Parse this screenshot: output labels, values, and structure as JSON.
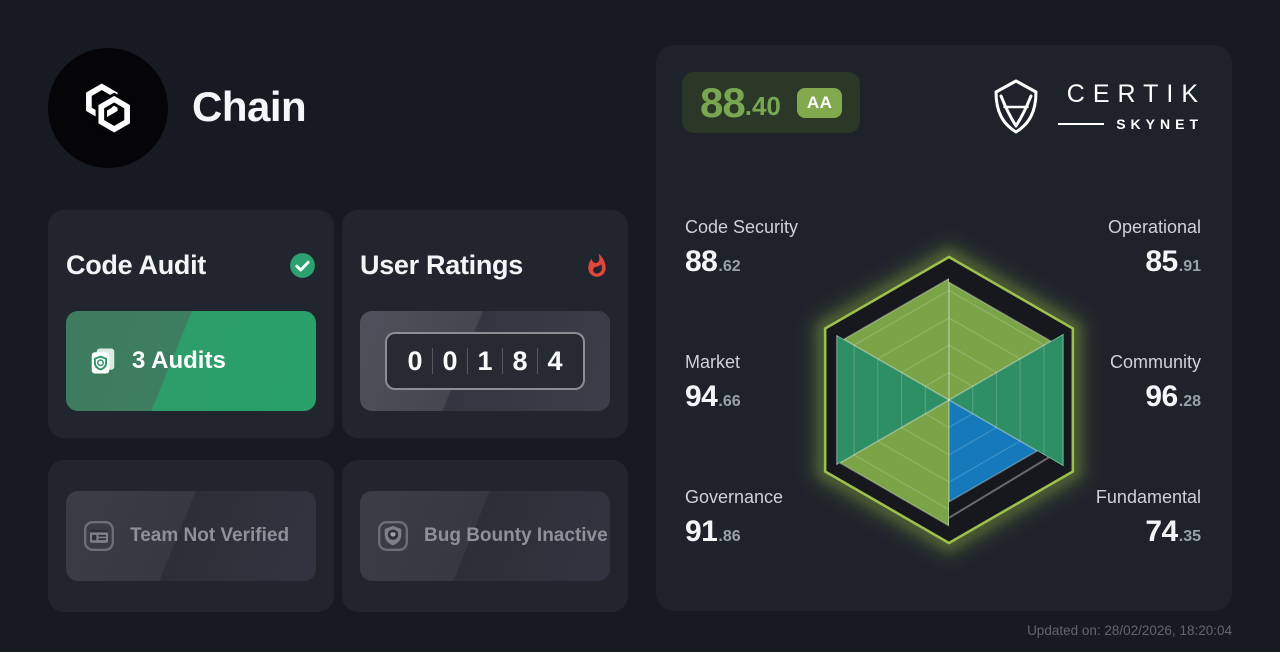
{
  "header": {
    "project_name": "Chain"
  },
  "cards": {
    "code_audit": {
      "title": "Code Audit",
      "status_icon": "check-circle",
      "button_label": "3 Audits"
    },
    "user_ratings": {
      "title": "User Ratings",
      "status_icon": "flame",
      "digits": [
        "0",
        "0",
        "1",
        "8",
        "4"
      ]
    },
    "team": {
      "icon": "id-card",
      "label": "Team Not Verified"
    },
    "bug_bounty": {
      "icon": "shield-bug",
      "label": "Bug Bounty Inactive"
    }
  },
  "skynet": {
    "score": {
      "int": "88",
      "dec": ".40",
      "grade": "AA"
    },
    "brand": {
      "name": "CERTIK",
      "sub": "SKYNET"
    },
    "colors": {
      "score_green": "#79a751",
      "grade_bg": "#83a94e",
      "hex_border": "#9cc04d",
      "hex_inner_fill": "#16181d",
      "olive": "#7ba347",
      "teal": "#2e8e64",
      "blue": "#1579bb"
    }
  },
  "chart_data": {
    "type": "radar",
    "shape": "hexagon",
    "max": 100,
    "sector_order": "clockwise-from-top-vertex",
    "metrics": [
      {
        "key": "operational",
        "label": "Operational",
        "value": 85.91,
        "color": "#7ba347",
        "pos": "tr"
      },
      {
        "key": "community",
        "label": "Community",
        "value": 96.28,
        "color": "#2e8e64",
        "pos": "mr"
      },
      {
        "key": "fundamental",
        "label": "Fundamental",
        "value": 74.35,
        "color": "#1579bb",
        "pos": "br"
      },
      {
        "key": "governance",
        "label": "Governance",
        "value": 91.86,
        "color": "#7ba347",
        "pos": "bl"
      },
      {
        "key": "market",
        "label": "Market",
        "value": 94.66,
        "color": "#2e8e64",
        "pos": "ml"
      },
      {
        "key": "code_security",
        "label": "Code Security",
        "value": 88.62,
        "color": "#7ba347",
        "pos": "tl"
      }
    ]
  },
  "footer": {
    "updated": "Updated on: 28/02/2026, 18:20:04"
  }
}
